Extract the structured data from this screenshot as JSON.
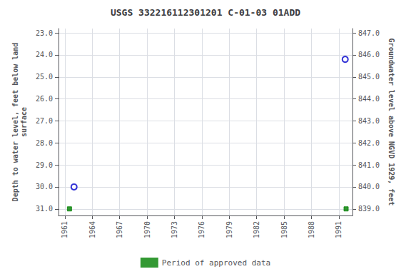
{
  "chart_data": {
    "type": "scatter",
    "title": "USGS 332216112301201 C-01-03 01ADD",
    "xlim": [
      1960.3,
      1992.5
    ],
    "xticks": [
      1961,
      1964,
      1967,
      1970,
      1973,
      1976,
      1979,
      1982,
      1985,
      1988,
      1991
    ],
    "ylabel": "Depth to water level, feet below land\nsurface",
    "ylim": [
      31.3,
      22.8
    ],
    "yticks": [
      {
        "value": 23.0,
        "label": "23.0"
      },
      {
        "value": 24.0,
        "label": "24.0"
      },
      {
        "value": 25.0,
        "label": "25.0"
      },
      {
        "value": 26.0,
        "label": "26.0"
      },
      {
        "value": 27.0,
        "label": "27.0"
      },
      {
        "value": 28.0,
        "label": "28.0"
      },
      {
        "value": 29.0,
        "label": "29.0"
      },
      {
        "value": 30.0,
        "label": "30.0"
      },
      {
        "value": 31.0,
        "label": "31.0"
      }
    ],
    "y2label": "Groundwater level above NGVD 1929, feet",
    "y2lim": [
      838.7,
      847.2
    ],
    "y2ticks": [
      {
        "value": 839.0,
        "label": "839.0"
      },
      {
        "value": 840.0,
        "label": "840.0"
      },
      {
        "value": 841.0,
        "label": "841.0"
      },
      {
        "value": 842.0,
        "label": "842.0"
      },
      {
        "value": 843.0,
        "label": "843.0"
      },
      {
        "value": 844.0,
        "label": "844.0"
      },
      {
        "value": 845.0,
        "label": "845.0"
      },
      {
        "value": 846.0,
        "label": "846.0"
      },
      {
        "value": 847.0,
        "label": "847.0"
      }
    ],
    "grid": true,
    "legend": "bottom",
    "series": [
      {
        "x": [
          1962.0,
          1991.7
        ],
        "values": [
          30.0,
          24.2
        ],
        "color": "#0000cc",
        "marker": "open_circle"
      },
      {
        "name": "Period of approved data",
        "x": [
          1961.5,
          1991.8
        ],
        "values": [
          31.0,
          31.0
        ],
        "color": "#008000",
        "marker": "square"
      }
    ]
  }
}
